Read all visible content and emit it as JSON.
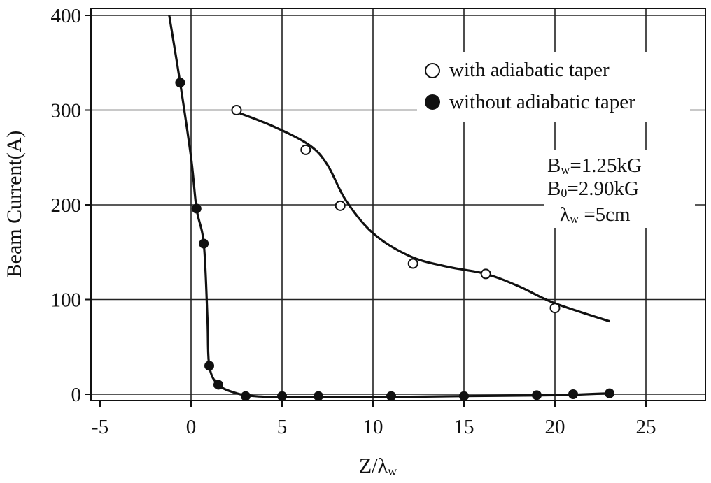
{
  "chart_data": {
    "type": "line",
    "title": "",
    "xlabel": "Z/λ",
    "xlabel_sub": "w",
    "ylabel": "Beam Current(A)",
    "xlim": [
      -5,
      28
    ],
    "ylim": [
      -5,
      405
    ],
    "x_ticks": [
      -5,
      0,
      5,
      10,
      15,
      20,
      25
    ],
    "x_tick_labels": [
      "-5",
      "0",
      "5",
      "10",
      "15",
      "20",
      "25"
    ],
    "y_ticks": [
      0,
      100,
      200,
      300,
      400
    ],
    "y_tick_labels": [
      "0",
      "100",
      "200",
      "300",
      "400"
    ],
    "grid": true,
    "legend_position": "top-right",
    "series": [
      {
        "name": "with adiabatic taper",
        "marker": "open-circle",
        "points": [
          [
            2.5,
            300
          ],
          [
            6.3,
            258
          ],
          [
            8.2,
            199
          ],
          [
            12.2,
            138
          ],
          [
            16.2,
            127
          ],
          [
            20,
            91
          ]
        ],
        "curve": [
          [
            2.5,
            298
          ],
          [
            4.5,
            283
          ],
          [
            6.5,
            263
          ],
          [
            7.5,
            242
          ],
          [
            8.5,
            205
          ],
          [
            10,
            170
          ],
          [
            12,
            146
          ],
          [
            14,
            135
          ],
          [
            16.2,
            127
          ],
          [
            18,
            114
          ],
          [
            20,
            96
          ],
          [
            23,
            77
          ]
        ]
      },
      {
        "name": "without adiabatic taper",
        "marker": "filled-circle",
        "points": [
          [
            -0.6,
            329
          ],
          [
            0.3,
            196
          ],
          [
            0.7,
            159
          ],
          [
            1.0,
            30
          ],
          [
            1.5,
            10
          ],
          [
            3,
            -2
          ],
          [
            5,
            -2
          ],
          [
            7,
            -2
          ],
          [
            11,
            -2
          ],
          [
            15,
            -2
          ],
          [
            19,
            -1
          ],
          [
            21,
            0
          ],
          [
            23,
            1
          ]
        ],
        "curve": [
          [
            -1.2,
            400
          ],
          [
            -0.6,
            329
          ],
          [
            0,
            250
          ],
          [
            0.3,
            196
          ],
          [
            0.7,
            159
          ],
          [
            0.9,
            80
          ],
          [
            1.0,
            30
          ],
          [
            1.5,
            10
          ],
          [
            2.5,
            1
          ],
          [
            3.5,
            -2
          ],
          [
            5,
            -3
          ],
          [
            10,
            -3
          ],
          [
            15,
            -2
          ],
          [
            20,
            -1
          ],
          [
            23,
            1
          ]
        ]
      }
    ],
    "annotations": [
      {
        "main": "B",
        "sub": "w",
        "rest": "=1.25kG"
      },
      {
        "main": "B",
        "sub": "0",
        "rest": "=2.90kG"
      },
      {
        "main": "λ",
        "sub": "w",
        "rest": " =5cm"
      }
    ],
    "colors": {
      "ink": "#111111",
      "grid": "#222222",
      "background": "#ffffff"
    }
  }
}
